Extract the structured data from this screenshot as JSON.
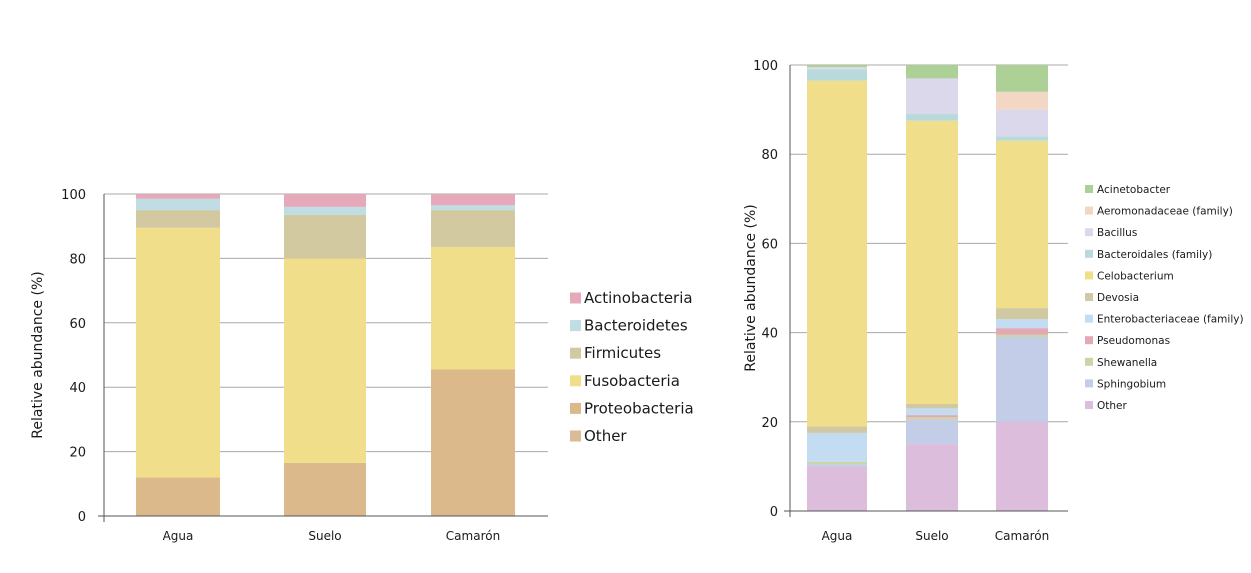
{
  "chart_data": [
    {
      "type": "bar",
      "stacked": true,
      "title": "",
      "xlabel": "",
      "ylabel": "Relative abundance (%)",
      "ylim": [
        0,
        100
      ],
      "yticks": [
        0,
        20,
        40,
        60,
        80,
        100
      ],
      "grid": true,
      "legend_position": "right",
      "categories": [
        "Agua",
        "Suelo",
        "Camarón"
      ],
      "series": [
        {
          "name": "Other",
          "color": "#d9bb96",
          "values": [
            0,
            0,
            0
          ]
        },
        {
          "name": "Proteobacteria",
          "color": "#dbb98a",
          "values": [
            12,
            16.5,
            45.5
          ]
        },
        {
          "name": "Fusobacteria",
          "color": "#f0de8a",
          "values": [
            77.5,
            63.5,
            38
          ]
        },
        {
          "name": "Firmicutes",
          "color": "#d2c9a0",
          "values": [
            5.5,
            13.5,
            11.5
          ]
        },
        {
          "name": "Bacteroidetes",
          "color": "#bfdde2",
          "values": [
            3.5,
            2.5,
            1.5
          ]
        },
        {
          "name": "Actinobacteria",
          "color": "#e6a9ba",
          "values": [
            1.5,
            4,
            3.5
          ]
        }
      ]
    },
    {
      "type": "bar",
      "stacked": true,
      "title": "",
      "xlabel": "",
      "ylabel": "Relative abundance (%)",
      "ylim": [
        0,
        100
      ],
      "yticks": [
        0,
        20,
        40,
        60,
        80,
        100
      ],
      "grid": true,
      "legend_position": "right",
      "categories": [
        "Agua",
        "Suelo",
        "Camarón"
      ],
      "series": [
        {
          "name": "Other",
          "color": "#dcbddb",
          "values": [
            10,
            15,
            20
          ]
        },
        {
          "name": "Sphingobium",
          "color": "#c3cde8",
          "values": [
            0.5,
            5.5,
            19
          ]
        },
        {
          "name": "Shewanella",
          "color": "#cbd6a6",
          "values": [
            0.5,
            0.5,
            0.5
          ]
        },
        {
          "name": "Pseudomonas",
          "color": "#e2a8b4",
          "values": [
            0,
            0.5,
            1.5
          ]
        },
        {
          "name": "Enterobacteriaceae (family)",
          "color": "#c4dcf2",
          "values": [
            6.5,
            1.5,
            2
          ]
        },
        {
          "name": "Devosia",
          "color": "#d1c9a2",
          "values": [
            1.5,
            1,
            2.5
          ]
        },
        {
          "name": "Celobacterium",
          "color": "#f0de8a",
          "values": [
            77.5,
            63.5,
            37.5
          ]
        },
        {
          "name": "Bacteroidales (family)",
          "color": "#b9dadb",
          "values": [
            2.5,
            1.5,
            1
          ]
        },
        {
          "name": "Bacillus",
          "color": "#dcd8ec",
          "values": [
            0.5,
            8,
            6
          ]
        },
        {
          "name": "Aeromonadaceae (family)",
          "color": "#f1d7c4",
          "values": [
            0,
            0,
            4
          ]
        },
        {
          "name": "Acinetobacter",
          "color": "#acd096",
          "values": [
            0.5,
            3,
            6
          ]
        }
      ]
    }
  ]
}
